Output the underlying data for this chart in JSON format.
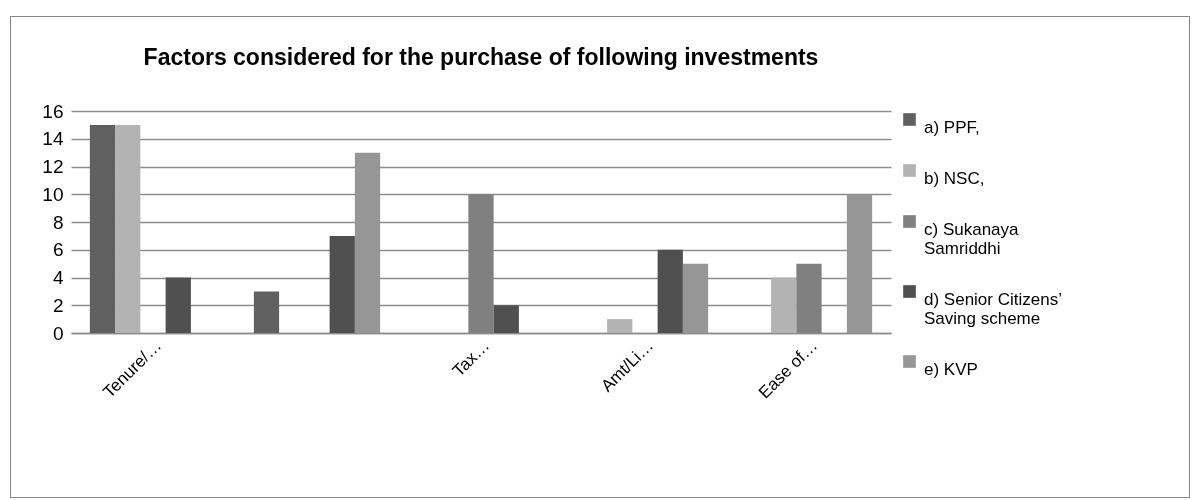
{
  "chart_data": {
    "type": "bar",
    "title": "Factors considered for the purchase of following investments",
    "categories": [
      "Tenure/…",
      null,
      "Tax…",
      "Amt/Li…",
      "Ease of…"
    ],
    "series": [
      {
        "name": "a) PPF,",
        "color": "#606060",
        "values": [
          15,
          3,
          0,
          0,
          0
        ]
      },
      {
        "name": "b) NSC,",
        "color": "#b3b3b3",
        "values": [
          15,
          0,
          0,
          1,
          4
        ]
      },
      {
        "name": "c) Sukanaya Samriddhi",
        "color": "#808080",
        "values": [
          0,
          0,
          10,
          0,
          5
        ]
      },
      {
        "name": "d) Senior Citizens’ Saving scheme",
        "color": "#505050",
        "values": [
          4,
          7,
          2,
          6,
          0
        ]
      },
      {
        "name": "e) KVP",
        "color": "#969696",
        "values": [
          0,
          13,
          0,
          5,
          10
        ]
      }
    ],
    "ylim": [
      0,
      16
    ],
    "yticks": [
      0,
      2,
      4,
      6,
      8,
      10,
      12,
      14,
      16
    ],
    "grid": "y",
    "legend": "right"
  }
}
